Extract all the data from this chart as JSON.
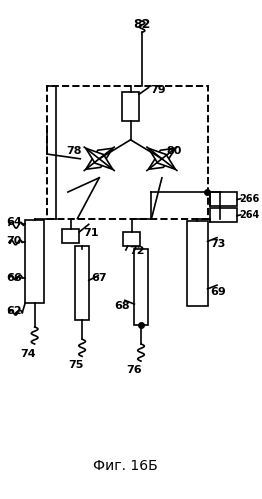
{
  "title": "Фиг. 16Б",
  "bg_color": "#ffffff",
  "line_color": "#000000",
  "fig_width": 2.62,
  "fig_height": 4.99,
  "dpi": 100
}
